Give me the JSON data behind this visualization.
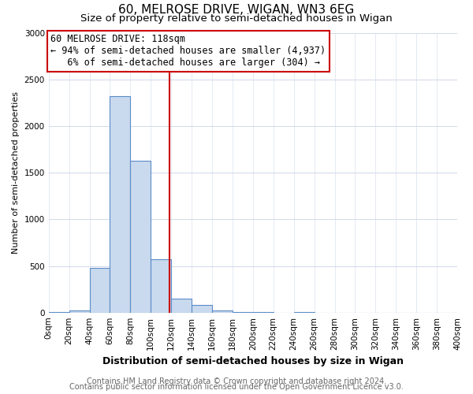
{
  "title": "60, MELROSE DRIVE, WIGAN, WN3 6EG",
  "subtitle": "Size of property relative to semi-detached houses in Wigan",
  "xlabel": "Distribution of semi-detached houses by size in Wigan",
  "ylabel": "Number of semi-detached properties",
  "bin_edges": [
    0,
    20,
    40,
    60,
    80,
    100,
    120,
    140,
    160,
    180,
    200,
    220,
    240,
    260,
    280,
    300,
    320,
    340,
    360,
    380,
    400
  ],
  "bin_counts": [
    5,
    20,
    480,
    2320,
    1630,
    570,
    150,
    80,
    25,
    5,
    5,
    0,
    5,
    0,
    0,
    0,
    0,
    0,
    0,
    0
  ],
  "bar_facecolor": "#c9d9ee",
  "bar_edgecolor": "#5b8cc8",
  "marker_x": 118,
  "marker_color": "#cc0000",
  "annotation_line1": "60 MELROSE DRIVE: 118sqm",
  "annotation_line2": "← 94% of semi-detached houses are smaller (4,937)",
  "annotation_line3": "   6% of semi-detached houses are larger (304) →",
  "annotation_box_facecolor": "white",
  "annotation_box_edgecolor": "#cc0000",
  "ylim": [
    0,
    3000
  ],
  "xlim": [
    0,
    400
  ],
  "yticks": [
    0,
    500,
    1000,
    1500,
    2000,
    2500,
    3000
  ],
  "xtick_step": 20,
  "footer_line1": "Contains HM Land Registry data © Crown copyright and database right 2024.",
  "footer_line2": "Contains public sector information licensed under the Open Government Licence v3.0.",
  "background_color": "#ffffff",
  "plot_background_color": "#ffffff",
  "grid_color": "#d0dae8",
  "title_fontsize": 11,
  "subtitle_fontsize": 9.5,
  "xlabel_fontsize": 9,
  "ylabel_fontsize": 8,
  "annotation_fontsize": 8.5,
  "footer_fontsize": 7,
  "tick_label_fontsize": 7.5
}
